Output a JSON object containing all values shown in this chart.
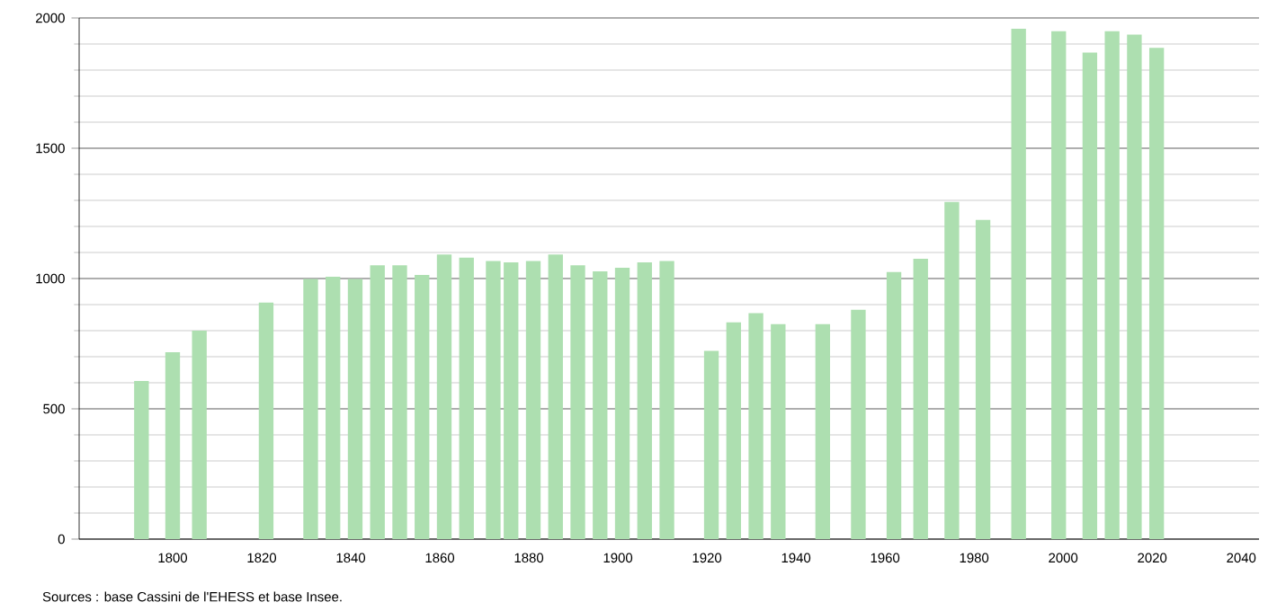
{
  "chart_data": {
    "type": "bar",
    "x": [
      1793,
      1800,
      1806,
      1821,
      1831,
      1836,
      1841,
      1846,
      1851,
      1856,
      1861,
      1866,
      1872,
      1876,
      1881,
      1886,
      1891,
      1896,
      1901,
      1906,
      1911,
      1921,
      1926,
      1931,
      1936,
      1946,
      1954,
      1962,
      1968,
      1975,
      1982,
      1990,
      1999,
      2006,
      2011,
      2016,
      2021
    ],
    "values": [
      607,
      717,
      800,
      908,
      998,
      1007,
      998,
      1051,
      1051,
      1014,
      1092,
      1080,
      1067,
      1062,
      1067,
      1092,
      1051,
      1028,
      1041,
      1062,
      1067,
      722,
      832,
      867,
      825,
      825,
      880,
      1025,
      1076,
      1294,
      1225,
      1959,
      1949,
      1867,
      1949,
      1936,
      1885
    ],
    "color": "#addfb0",
    "xlim": [
      1779,
      2044
    ],
    "xticks": [
      1800,
      1820,
      1840,
      1860,
      1880,
      1900,
      1920,
      1940,
      1960,
      1980,
      2000,
      2020,
      2040
    ],
    "ylim": [
      0,
      2000
    ],
    "yticks": [
      0,
      500,
      1000,
      1500,
      2000
    ],
    "grid": "y",
    "annotations": [
      "Sources : base Cassini de l'EHESS et base Insee."
    ]
  }
}
